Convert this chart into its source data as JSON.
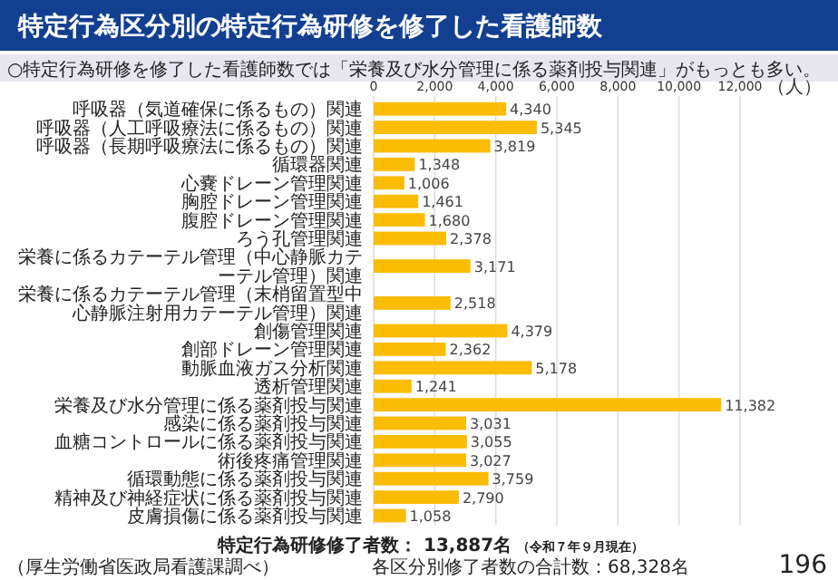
{
  "chart_data": {
    "type": "bar",
    "orientation": "horizontal",
    "title": "特定行為区分別の特定行為研修を修了した看護師数",
    "subtitle": "○特定行為研修を修了した看護師数では「栄養及び水分管理に係る薬剤投与関連」がもっとも多い。",
    "categories": [
      "呼吸器（気道確保に係るもの）関連",
      "呼吸器（人工呼吸療法に係るもの）関連",
      "呼吸器（長期呼吸療法に係るもの）関連",
      "循環器関連",
      "心嚢ドレーン管理関連",
      "胸腔ドレーン管理関連",
      "腹腔ドレーン管理関連",
      "ろう孔管理関連",
      "栄養に係るカテーテル管理（中心静脈カテーテル管理）関連",
      "栄養に係るカテーテル管理（末梢留置型中心静脈注射用カテーテル管理）関連",
      "創傷管理関連",
      "創部ドレーン管理関連",
      "動脈血液ガス分析関連",
      "透析管理関連",
      "栄養及び水分管理に係る薬剤投与関連",
      "感染に係る薬剤投与関連",
      "血糖コントロールに係る薬剤投与関連",
      "術後疼痛管理関連",
      "循環動態に係る薬剤投与関連",
      "精神及び神経症状に係る薬剤投与関連",
      "皮膚損傷に係る薬剤投与関連"
    ],
    "values": [
      4340,
      5345,
      3819,
      1348,
      1006,
      1461,
      1680,
      2378,
      3171,
      2518,
      4379,
      2362,
      5178,
      1241,
      11382,
      3031,
      3055,
      3027,
      3759,
      2790,
      1058
    ],
    "value_labels": [
      "4,340",
      "5,345",
      "3,819",
      "1,348",
      "1,006",
      "1,461",
      "1,680",
      "2,378",
      "3,171",
      "2,518",
      "4,379",
      "2,362",
      "5,178",
      "1,241",
      "11,382",
      "3,031",
      "3,055",
      "3,027",
      "3,759",
      "2,790",
      "1,058"
    ],
    "color": "#fbbc05",
    "grid": "x",
    "xlabel": "（人）",
    "xlim": [
      0,
      12000
    ],
    "xticks": [
      0,
      {
        "value": 2000,
        "label": "2,000"
      },
      {
        "value": 4000,
        "label": "4,000"
      },
      {
        "value": 6000,
        "label": "6,000"
      },
      {
        "value": 8000,
        "label": "8,000"
      },
      {
        "value": 10000,
        "label": "10,000"
      },
      {
        "value": 12000,
        "label": "12,000"
      }
    ],
    "annotations": [
      "特定行為研修修了者数： 13,887名",
      "（令和７年９月現在）",
      "（厚生労働省医政局看護課調べ）",
      "各区分別修了者数の合計数：68,328名",
      "196"
    ]
  }
}
